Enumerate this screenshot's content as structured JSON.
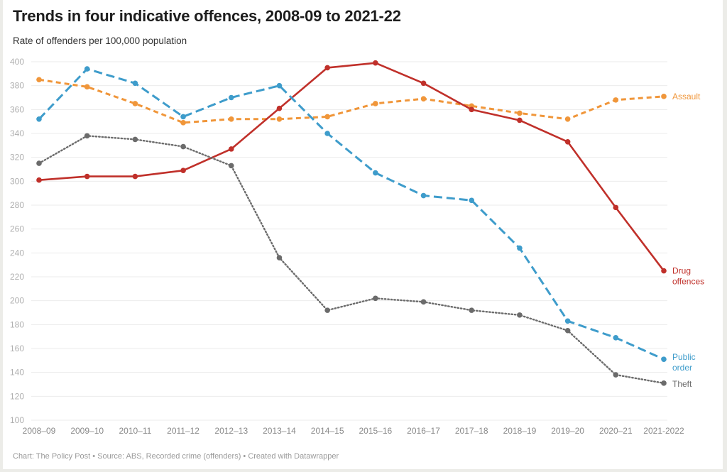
{
  "chart_data": {
    "type": "line",
    "title": "Trends in four indicative offences, 2008-09 to 2021-22",
    "subtitle": "Rate of offenders per 100,000 population",
    "xlabel": "",
    "ylabel": "Rate of offenders per 100,000 population",
    "ylim": [
      100,
      400
    ],
    "yticks": [
      100,
      120,
      140,
      160,
      180,
      200,
      220,
      240,
      260,
      280,
      300,
      320,
      340,
      360,
      380,
      400
    ],
    "grid": true,
    "legend": "inline-right",
    "categories": [
      "2008–09",
      "2009–10",
      "2010–11",
      "2011–12",
      "2012–13",
      "2013–14",
      "2014–15",
      "2015–16",
      "2016–17",
      "2017–18",
      "2018–19",
      "2019–20",
      "2020–21",
      "2021-2022"
    ],
    "series": [
      {
        "name": "Assault",
        "label_lines": [
          "Assault"
        ],
        "color": "#f0963a",
        "style": "dashed-short",
        "values": [
          385,
          379,
          365,
          349,
          352,
          352,
          354,
          365,
          369,
          363,
          357,
          352,
          368,
          371
        ]
      },
      {
        "name": "Drug offences",
        "label_lines": [
          "Drug",
          "offences"
        ],
        "color": "#c0302a",
        "style": "solid",
        "values": [
          301,
          304,
          304,
          309,
          327,
          361,
          395,
          399,
          382,
          360,
          351,
          333,
          278,
          225
        ]
      },
      {
        "name": "Public order",
        "label_lines": [
          "Public",
          "order"
        ],
        "color": "#3e9ccb",
        "style": "dashed-long",
        "values": [
          352,
          394,
          382,
          354,
          370,
          380,
          340,
          307,
          288,
          284,
          244,
          183,
          169,
          151
        ]
      },
      {
        "name": "Theft",
        "label_lines": [
          "Theft"
        ],
        "color": "#6b6b6b",
        "style": "dotted",
        "values": [
          315,
          338,
          335,
          329,
          313,
          236,
          192,
          202,
          199,
          192,
          188,
          175,
          138,
          131
        ]
      }
    ]
  },
  "footer": "Chart: The Policy Post • Source: ABS, Recorded crime (offenders) • Created with Datawrapper"
}
